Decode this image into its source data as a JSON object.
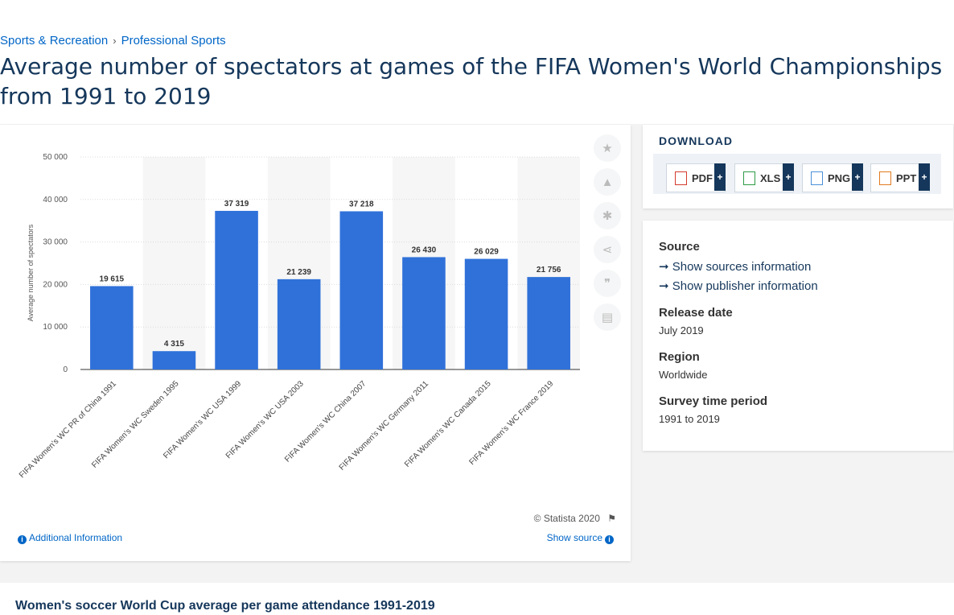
{
  "breadcrumb": {
    "items": [
      "Sports & Recreation",
      "Professional Sports"
    ],
    "separator": "›"
  },
  "title": "Average number of spectators at games of the FIFA Women's World Championships from 1991 to 2019",
  "chart_footer": {
    "copyright": "© Statista 2020",
    "additional_info": "Additional Information",
    "show_source": "Show source"
  },
  "download": {
    "heading": "DOWNLOAD",
    "buttons": [
      {
        "label": "PDF",
        "color": "#d33a2c"
      },
      {
        "label": "XLS",
        "color": "#2e9b45"
      },
      {
        "label": "PNG",
        "color": "#4a90d9"
      },
      {
        "label": "PPT",
        "color": "#e07b20"
      }
    ],
    "plus": "+"
  },
  "info": {
    "source_label": "Source",
    "show_sources": "Show sources information",
    "show_publisher": "Show publisher information",
    "release_label": "Release date",
    "release_value": "July 2019",
    "region_label": "Region",
    "region_value": "Worldwide",
    "period_label": "Survey time period",
    "period_value": "1991 to 2019"
  },
  "bottom": {
    "title": "Women's soccer World Cup average per game attendance 1991-2019"
  },
  "tools": [
    "star-icon",
    "bell-icon",
    "gear-icon",
    "share-icon",
    "quote-icon",
    "print-icon"
  ],
  "colors": {
    "bar": "#3071d9",
    "accent": "#15375b",
    "link": "#0066c7"
  },
  "chart_data": {
    "type": "bar",
    "categories": [
      "FIFA Women's WC PR of China 1991",
      "FIFA Women's WC Sweden 1995",
      "FIFA Women's WC USA 1999",
      "FIFA Women's WC USA 2003",
      "FIFA Women's WC China 2007",
      "FIFA Women's WC Germany 2011",
      "FIFA Women's WC Canada 2015",
      "FIFA Women's WC France 2019"
    ],
    "values": [
      19615,
      4315,
      37319,
      21239,
      37218,
      26430,
      26029,
      21756
    ],
    "value_labels": [
      "19 615",
      "4 315",
      "37 319",
      "21 239",
      "37 218",
      "26 430",
      "26 029",
      "21 756"
    ],
    "ylabel": "Average number of spectators",
    "ylim": [
      0,
      50000
    ],
    "yticks": [
      0,
      10000,
      20000,
      30000,
      40000,
      50000
    ],
    "ytick_labels": [
      "0",
      "10 000",
      "20 000",
      "30 000",
      "40 000",
      "50 000"
    ],
    "grid": true
  }
}
